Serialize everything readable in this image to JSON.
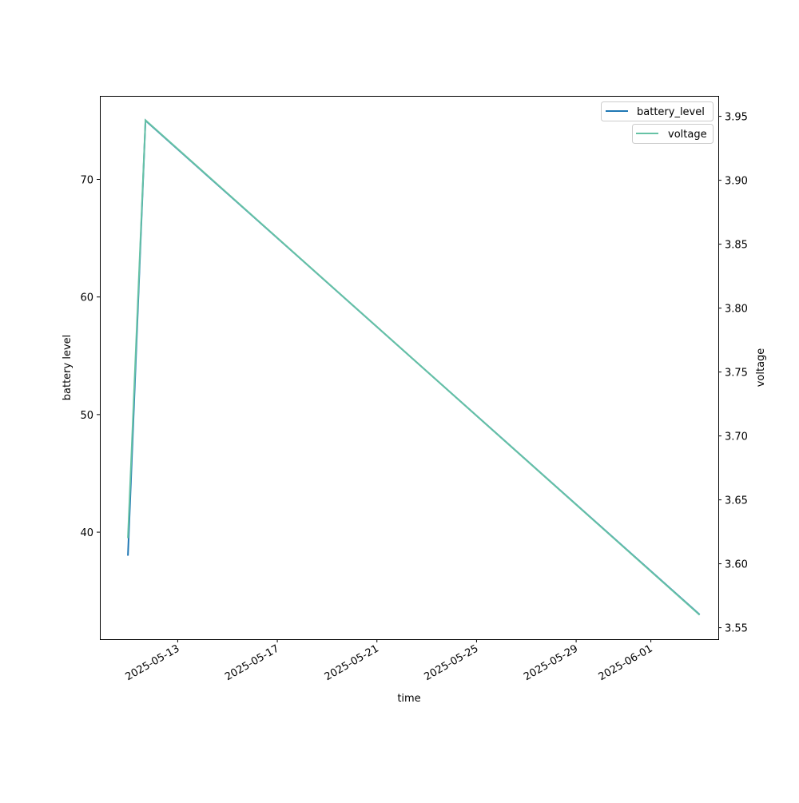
{
  "chart_data": {
    "type": "line",
    "xlabel": "time",
    "ylabel": "battery level",
    "ylabel_right": "voltage",
    "x_ticks": [
      "2025-05-13",
      "2025-05-17",
      "2025-05-21",
      "2025-05-25",
      "2025-05-29",
      "2025-06-01"
    ],
    "y_ticks_left": [
      40,
      50,
      60,
      70
    ],
    "y_ticks_right": [
      "3.55",
      "3.60",
      "3.65",
      "3.70",
      "3.75",
      "3.80",
      "3.85",
      "3.90",
      "3.95"
    ],
    "xlim": [
      "2025-05-09T21:00",
      "2025-06-03T17:00"
    ],
    "ylim_left": [
      30.9,
      77.1
    ],
    "ylim_right": [
      3.541,
      3.966
    ],
    "grid": false,
    "series": [
      {
        "name": "battery_level",
        "axis": "left",
        "color": "#1f77b4",
        "x": [
          "2025-05-11T00:00",
          "2025-05-11T17:00",
          "2025-06-02T23:00"
        ],
        "y": [
          38,
          75,
          33
        ]
      },
      {
        "name": "voltage",
        "axis": "right",
        "color": "#66c2a5",
        "x": [
          "2025-05-11T00:00",
          "2025-05-11T17:00",
          "2025-06-02T23:00"
        ],
        "y": [
          3.62,
          3.947,
          3.56
        ]
      }
    ],
    "legends": [
      {
        "placement": "top-right",
        "entries": [
          "battery_level"
        ]
      },
      {
        "placement": "top-right",
        "entries": [
          "voltage"
        ]
      }
    ]
  }
}
